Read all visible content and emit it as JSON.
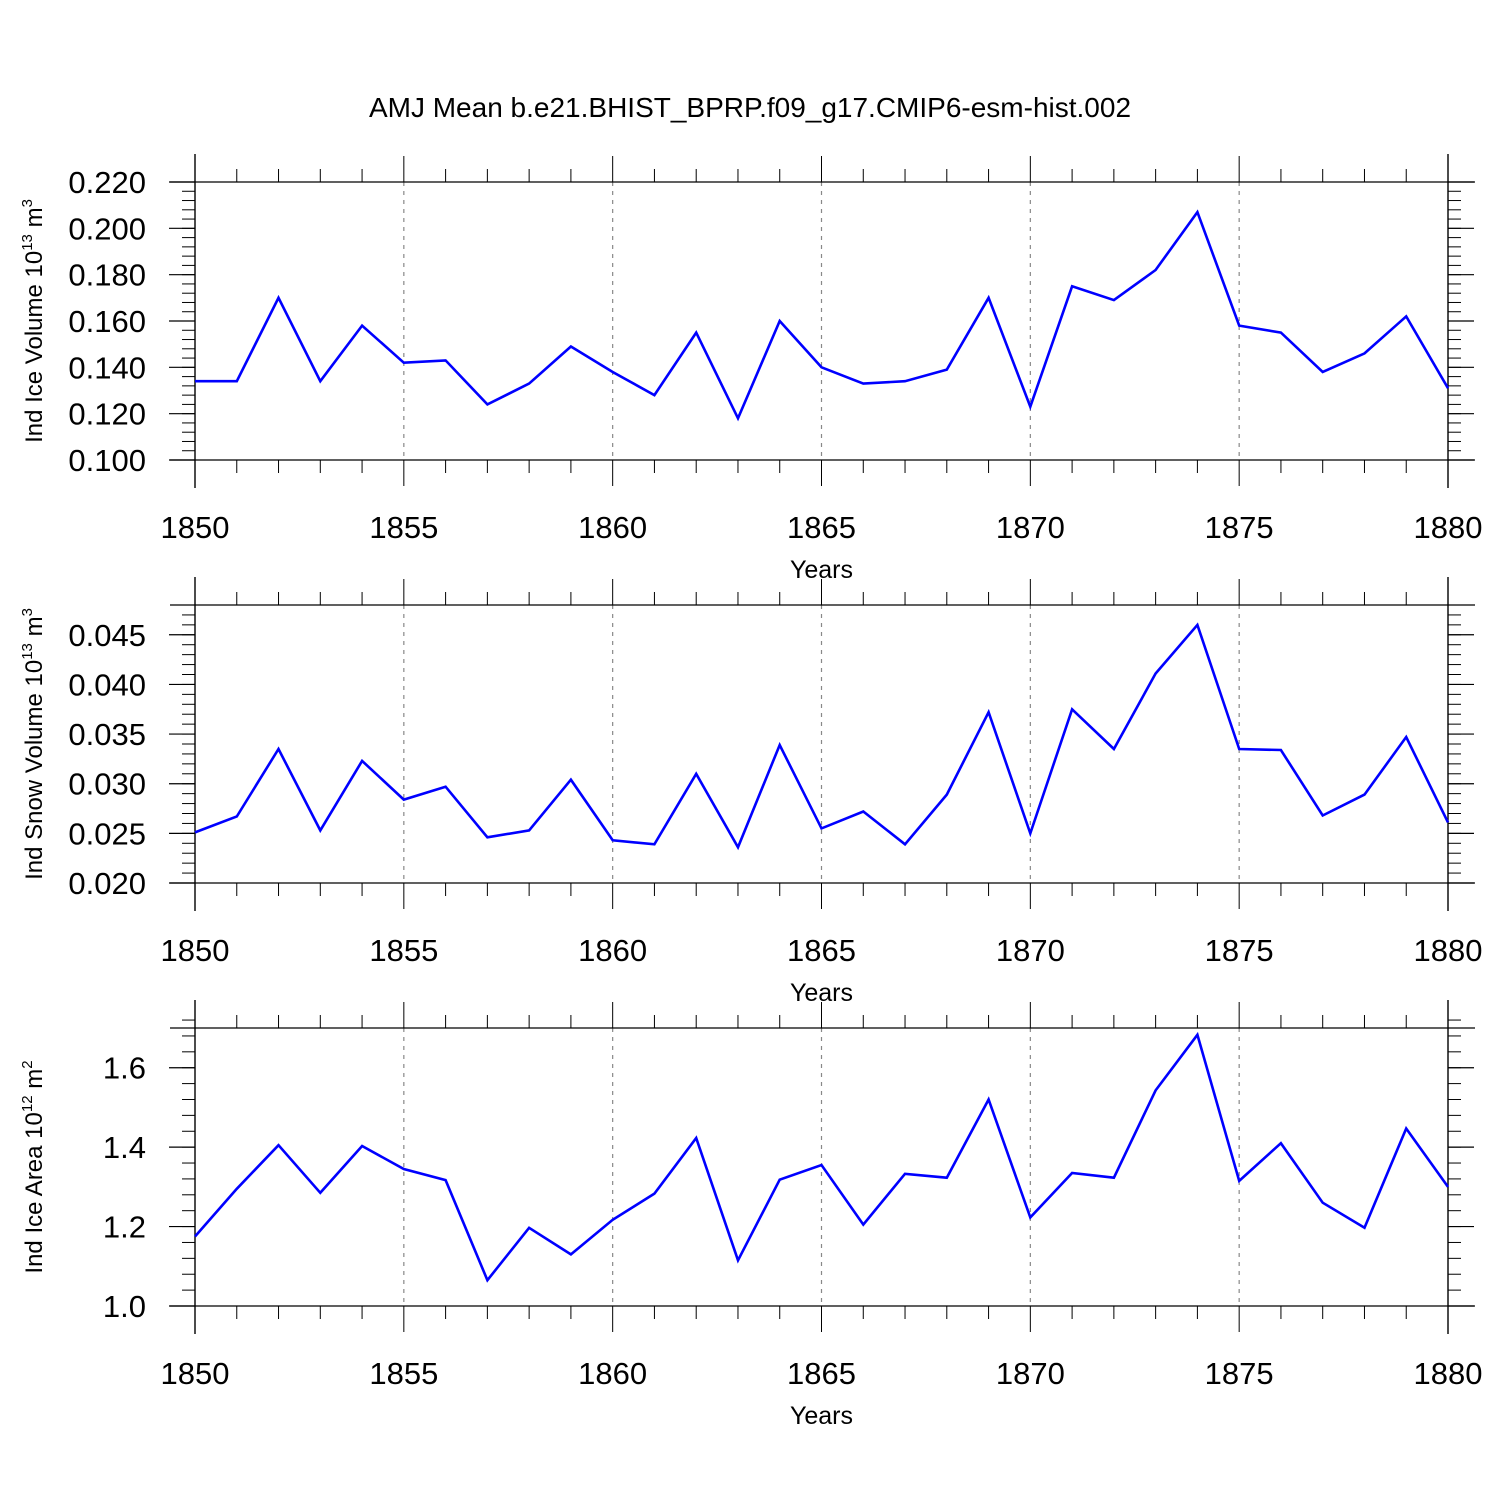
{
  "figure": {
    "title": "AMJ Mean b.e21.BHIST_BPRP.f09_g17.CMIP6-esm-hist.002"
  },
  "chart_data": [
    {
      "type": "line",
      "ylabel": "Ind Ice Volume 10",
      "ylabel_exp": "13",
      "ylabel_unit": " m",
      "ylabel_unit_exp": "3",
      "xlabel": "Years",
      "xlim": [
        1850,
        1880
      ],
      "ylim": [
        0.1,
        0.22
      ],
      "yticks": [
        0.1,
        0.12,
        0.14,
        0.16,
        0.18,
        0.2,
        0.22
      ],
      "ytick_labels": [
        "0.100",
        "0.120",
        "0.140",
        "0.160",
        "0.180",
        "0.200",
        "0.220"
      ],
      "yminor_step": 0.004,
      "xticks": [
        1850,
        1855,
        1860,
        1865,
        1870,
        1875,
        1880
      ],
      "xtick_labels": [
        "1850",
        "1855",
        "1860",
        "1865",
        "1870",
        "1875",
        "1880"
      ],
      "color": "#0000ff",
      "series": [
        {
          "name": "Ind Ice Volume",
          "x": [
            1850,
            1851,
            1852,
            1853,
            1854,
            1855,
            1856,
            1857,
            1858,
            1859,
            1860,
            1861,
            1862,
            1863,
            1864,
            1865,
            1866,
            1867,
            1868,
            1869,
            1870,
            1871,
            1872,
            1873,
            1874,
            1875,
            1876,
            1877,
            1878,
            1879,
            1880
          ],
          "values": [
            0.134,
            0.134,
            0.17,
            0.134,
            0.158,
            0.142,
            0.143,
            0.124,
            0.133,
            0.149,
            0.138,
            0.128,
            0.155,
            0.118,
            0.16,
            0.14,
            0.133,
            0.134,
            0.139,
            0.17,
            0.123,
            0.175,
            0.169,
            0.182,
            0.207,
            0.158,
            0.155,
            0.138,
            0.146,
            0.162,
            0.131
          ]
        }
      ]
    },
    {
      "type": "line",
      "ylabel": "Ind Snow Volume 10",
      "ylabel_exp": "13",
      "ylabel_unit": " m",
      "ylabel_unit_exp": "3",
      "xlabel": "Years",
      "xlim": [
        1850,
        1880
      ],
      "ylim": [
        0.02,
        0.048
      ],
      "yticks": [
        0.02,
        0.025,
        0.03,
        0.035,
        0.04,
        0.045
      ],
      "ytick_labels": [
        "0.020",
        "0.025",
        "0.030",
        "0.035",
        "0.040",
        "0.045"
      ],
      "yminor_step": 0.001,
      "xticks": [
        1850,
        1855,
        1860,
        1865,
        1870,
        1875,
        1880
      ],
      "xtick_labels": [
        "1850",
        "1855",
        "1860",
        "1865",
        "1870",
        "1875",
        "1880"
      ],
      "color": "#0000ff",
      "series": [
        {
          "name": "Ind Snow Volume",
          "x": [
            1850,
            1851,
            1852,
            1853,
            1854,
            1855,
            1856,
            1857,
            1858,
            1859,
            1860,
            1861,
            1862,
            1863,
            1864,
            1865,
            1866,
            1867,
            1868,
            1869,
            1870,
            1871,
            1872,
            1873,
            1874,
            1875,
            1876,
            1877,
            1878,
            1879,
            1880
          ],
          "values": [
            0.0251,
            0.0267,
            0.0335,
            0.0253,
            0.0323,
            0.0284,
            0.0297,
            0.0246,
            0.0253,
            0.0304,
            0.0243,
            0.0239,
            0.031,
            0.0236,
            0.0339,
            0.0255,
            0.0272,
            0.0239,
            0.0289,
            0.0372,
            0.025,
            0.0375,
            0.0335,
            0.0411,
            0.046,
            0.0335,
            0.0334,
            0.0268,
            0.0289,
            0.0347,
            0.0261
          ]
        }
      ]
    },
    {
      "type": "line",
      "ylabel": "Ind Ice Area 10",
      "ylabel_exp": "12",
      "ylabel_unit": " m",
      "ylabel_unit_exp": "2",
      "xlabel": "Years",
      "xlim": [
        1850,
        1880
      ],
      "ylim": [
        1.0,
        1.7
      ],
      "yticks": [
        1.0,
        1.2,
        1.4,
        1.6
      ],
      "ytick_labels": [
        "1.0",
        "1.2",
        "1.4",
        "1.6"
      ],
      "yminor_step": 0.04,
      "xticks": [
        1850,
        1855,
        1860,
        1865,
        1870,
        1875,
        1880
      ],
      "xtick_labels": [
        "1850",
        "1855",
        "1860",
        "1865",
        "1870",
        "1875",
        "1880"
      ],
      "color": "#0000ff",
      "series": [
        {
          "name": "Ind Ice Area",
          "x": [
            1850,
            1851,
            1852,
            1853,
            1854,
            1855,
            1856,
            1857,
            1858,
            1859,
            1860,
            1861,
            1862,
            1863,
            1864,
            1865,
            1866,
            1867,
            1868,
            1869,
            1870,
            1871,
            1872,
            1873,
            1874,
            1875,
            1876,
            1877,
            1878,
            1879,
            1880
          ],
          "values": [
            1.175,
            1.295,
            1.405,
            1.285,
            1.403,
            1.345,
            1.317,
            1.065,
            1.197,
            1.13,
            1.217,
            1.283,
            1.423,
            1.115,
            1.318,
            1.355,
            1.205,
            1.333,
            1.323,
            1.52,
            1.223,
            1.335,
            1.323,
            1.543,
            1.683,
            1.315,
            1.41,
            1.26,
            1.197,
            1.447,
            1.3
          ]
        }
      ]
    }
  ]
}
